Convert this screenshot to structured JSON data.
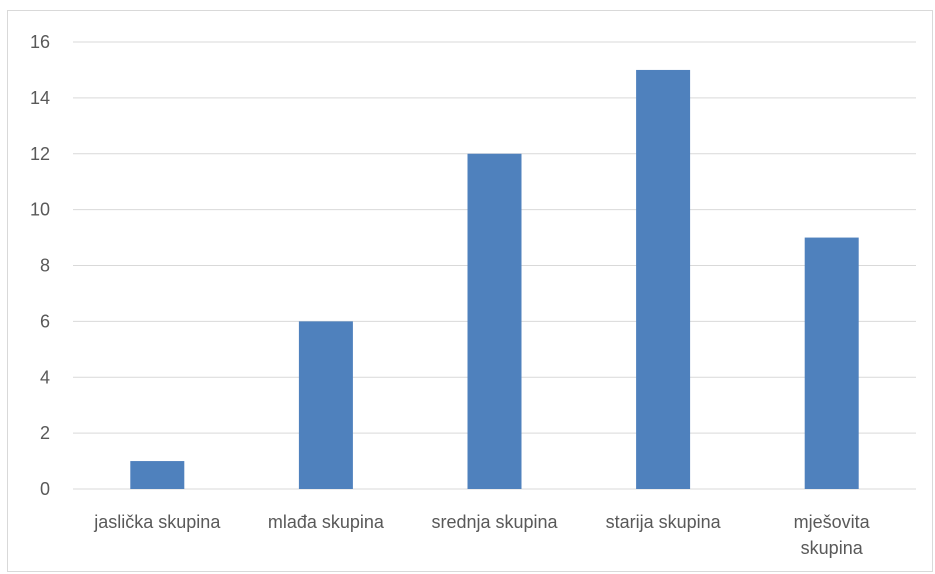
{
  "chart_data": {
    "type": "bar",
    "categories": [
      [
        "jaslička skupina"
      ],
      [
        "mlađa skupina"
      ],
      [
        "srednja skupina"
      ],
      [
        "starija skupina"
      ],
      [
        "mješovita",
        "skupina"
      ]
    ],
    "values": [
      1,
      6,
      12,
      15,
      9
    ],
    "ylim": [
      0,
      16
    ],
    "yticks": [
      "0",
      "2",
      "4",
      "6",
      "8",
      "10",
      "12",
      "14",
      "16"
    ],
    "grid": true,
    "legend": "none",
    "colors": {
      "bar": "#4f81bd",
      "grid": "#d9d9d9",
      "text": "#595959"
    }
  }
}
